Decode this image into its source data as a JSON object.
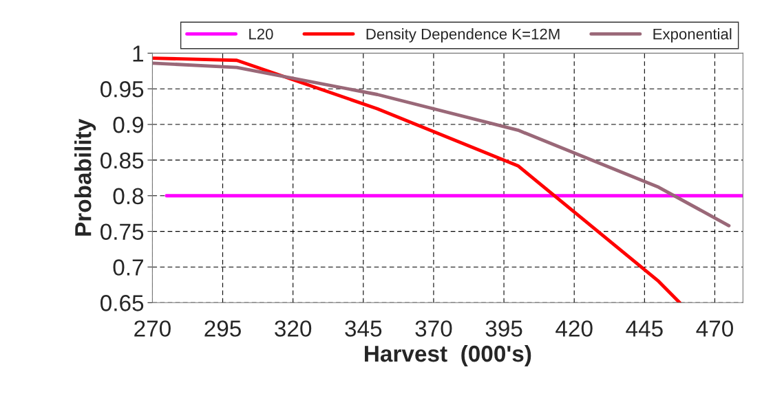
{
  "chart_data": {
    "type": "line",
    "xlabel": "Harvest  (000's)",
    "ylabel": "Probability",
    "xlim": [
      270,
      480
    ],
    "xticks": [
      270,
      295,
      320,
      345,
      370,
      395,
      420,
      445,
      470
    ],
    "ylim": [
      0.65,
      1
    ],
    "yticks": [
      0.65,
      0.7,
      0.75,
      0.8,
      0.85,
      0.9,
      0.95,
      1
    ],
    "grid": true,
    "legend": "top",
    "line_style": "solid",
    "marker": "none",
    "series": [
      {
        "name": "L20",
        "color": "#ff00ff",
        "x": [
          275,
          480
        ],
        "values": [
          0.8,
          0.8
        ]
      },
      {
        "name": "Density Dependence K=12M",
        "color": "#ff0000",
        "x": [
          270,
          300,
          350,
          400,
          450,
          457.5
        ],
        "values": [
          0.993,
          0.99,
          0.922,
          0.842,
          0.68,
          0.65
        ]
      },
      {
        "name": "Exponential",
        "color": "#9a6878",
        "x": [
          270,
          300,
          350,
          400,
          450,
          475
        ],
        "values": [
          0.986,
          0.98,
          0.942,
          0.892,
          0.812,
          0.758
        ]
      }
    ]
  }
}
